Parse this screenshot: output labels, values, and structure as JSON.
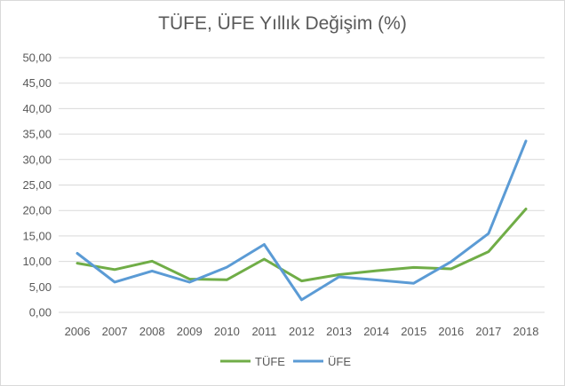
{
  "colors": {
    "tufe": "#70AD47",
    "ufe": "#5B9BD5",
    "grid": "#D9D9D9",
    "text": "#595959"
  },
  "chart_data": {
    "type": "line",
    "title": "TÜFE, ÜFE Yıllık Değişim (%)",
    "xlabel": "",
    "ylabel": "",
    "categories": [
      "2006",
      "2007",
      "2008",
      "2009",
      "2010",
      "2011",
      "2012",
      "2013",
      "2014",
      "2015",
      "2016",
      "2017",
      "2018"
    ],
    "ylim": [
      0,
      50
    ],
    "yticks": [
      "0,00",
      "5,00",
      "10,00",
      "15,00",
      "20,00",
      "25,00",
      "30,00",
      "35,00",
      "40,00",
      "45,00",
      "50,00"
    ],
    "grid": true,
    "legend_position": "bottom",
    "series": [
      {
        "name": "TÜFE",
        "color": "#70AD47",
        "values": [
          9.65,
          8.39,
          10.06,
          6.53,
          6.4,
          10.45,
          6.16,
          7.4,
          8.17,
          8.81,
          8.53,
          11.92,
          20.3
        ]
      },
      {
        "name": "ÜFE",
        "color": "#5B9BD5",
        "values": [
          11.58,
          5.94,
          8.11,
          5.93,
          8.87,
          13.33,
          2.45,
          6.97,
          6.36,
          5.71,
          9.94,
          15.47,
          33.64
        ]
      }
    ]
  }
}
